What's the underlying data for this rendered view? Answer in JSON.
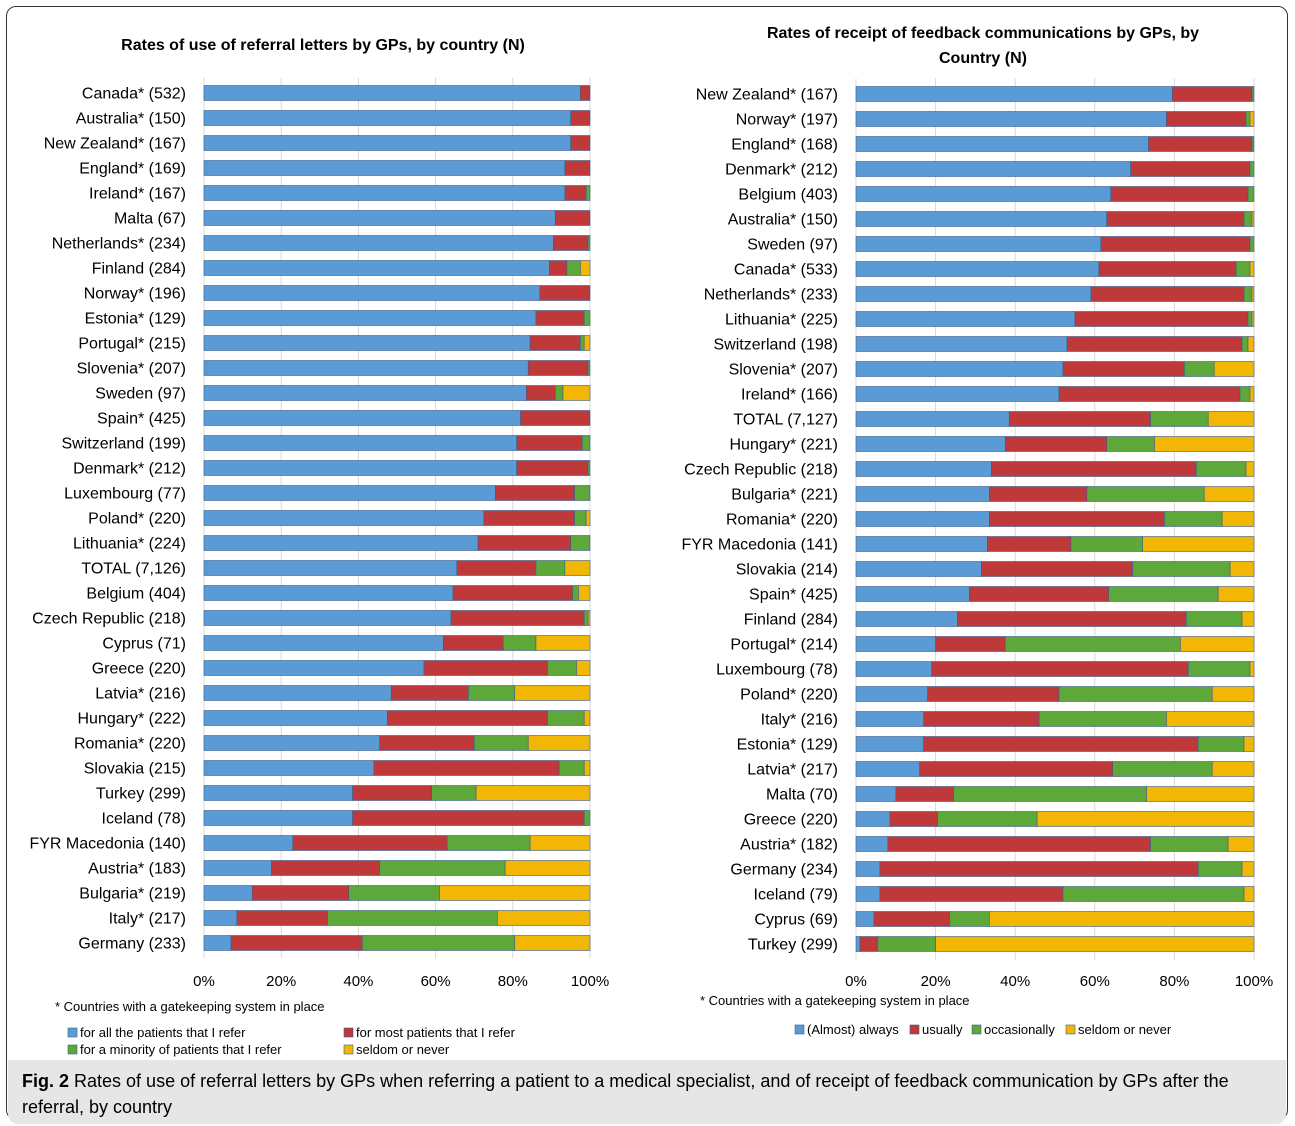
{
  "caption": {
    "label": "Fig. 2",
    "text": " Rates of use of referral letters by GPs when referring a patient to a medical specialist, and of receipt of feedback communication by GPs after the referral, by country"
  },
  "colors": {
    "s1": "#5b9bd5",
    "s2": "#c0393a",
    "s3": "#5ea83a",
    "s4": "#f2b705",
    "border": "#3b5d8a"
  },
  "chart_data": [
    {
      "type": "bar",
      "orientation": "horizontal",
      "stacked": true,
      "title": "Rates of use of referral letters by GPs, by country (N)",
      "footnote": "* Countries with a gatekeeping system in place",
      "xlim": [
        0,
        100
      ],
      "xticks": [
        "0%",
        "20%",
        "40%",
        "60%",
        "80%",
        "100%"
      ],
      "legend_position": "bottom",
      "categories": [
        "Canada* (532)",
        "Australia* (150)",
        "New Zealand* (167)",
        "England* (169)",
        "Ireland* (167)",
        "Malta (67)",
        "Netherlands* (234)",
        "Finland (284)",
        "Norway* (196)",
        "Estonia* (129)",
        "Portugal* (215)",
        "Slovenia* (207)",
        "Sweden (97)",
        "Spain* (425)",
        "Switzerland (199)",
        "Denmark* (212)",
        "Luxembourg (77)",
        "Poland* (220)",
        "Lithuania* (224)",
        "TOTAL (7,126)",
        "Belgium (404)",
        "Czech Republic (218)",
        "Cyprus (71)",
        "Greece (220)",
        "Latvia* (216)",
        "Hungary* (222)",
        "Romania* (220)",
        "Slovakia (215)",
        "Turkey (299)",
        "Iceland (78)",
        "FYR Macedonia (140)",
        "Austria* (183)",
        "Bulgaria* (219)",
        "Italy* (217)",
        "Germany (233)"
      ],
      "series": [
        {
          "name": "for all the patients that I refer",
          "values": [
            97.5,
            95,
            95,
            93.5,
            93.5,
            91,
            90.5,
            89.5,
            87,
            86,
            84.5,
            84,
            83.5,
            82,
            81,
            81,
            75.5,
            72.5,
            71,
            65.5,
            64.5,
            64,
            62,
            57,
            48.5,
            47.5,
            45.5,
            44,
            38.5,
            38.5,
            23,
            17.5,
            12.5,
            8.5,
            7
          ]
        },
        {
          "name": "for most patients that I refer",
          "values": [
            2.5,
            5,
            5,
            6.5,
            5.5,
            9,
            9,
            4.5,
            13,
            12.5,
            13,
            15.5,
            7.5,
            18,
            17,
            18.5,
            20.5,
            23.5,
            24,
            20.5,
            31,
            34.5,
            15.5,
            32,
            20,
            41.5,
            24.5,
            48,
            20.5,
            60,
            40,
            28,
            25,
            23.5,
            34
          ]
        },
        {
          "name": "for a minority of patients that I refer",
          "values": [
            0,
            0,
            0,
            0,
            1,
            0,
            0.5,
            3.5,
            0,
            1.5,
            1,
            0.5,
            2,
            0,
            2,
            0.5,
            4,
            3,
            5,
            7.5,
            1.5,
            1,
            8.5,
            7.5,
            12,
            9.5,
            14,
            6.5,
            11.5,
            1.5,
            21.5,
            32.5,
            23.5,
            44,
            39.5
          ]
        },
        {
          "name": "seldom or never",
          "values": [
            0,
            0,
            0,
            0,
            0,
            0,
            0,
            2.5,
            0,
            0,
            1.5,
            0,
            7,
            0,
            0,
            0,
            0,
            1,
            0,
            6.5,
            3,
            0.5,
            14,
            3.5,
            19.5,
            1.5,
            16,
            1.5,
            29.5,
            0,
            15.5,
            22,
            39,
            24,
            19.5
          ]
        }
      ]
    },
    {
      "type": "bar",
      "orientation": "horizontal",
      "stacked": true,
      "title": "Rates of receipt of feedback communications by GPs, by Country (N)",
      "title_lines": [
        "Rates of receipt of feedback communications by GPs, by",
        "Country (N)"
      ],
      "footnote": "* Countries with a gatekeeping system in place",
      "xlim": [
        0,
        100
      ],
      "xticks": [
        "0%",
        "20%",
        "40%",
        "60%",
        "80%",
        "100%"
      ],
      "legend_position": "bottom",
      "categories": [
        "New Zealand* (167)",
        "Norway* (197)",
        "England* (168)",
        "Denmark* (212)",
        "Belgium (403)",
        "Australia* (150)",
        "Sweden (97)",
        "Canada* (533)",
        "Netherlands* (233)",
        "Lithuania* (225)",
        "Switzerland (198)",
        "Slovenia* (207)",
        "Ireland* (166)",
        "TOTAL (7,127)",
        "Hungary* (221)",
        "Czech Republic (218)",
        "Bulgaria* (221)",
        "Romania* (220)",
        "FYR Macedonia (141)",
        "Slovakia (214)",
        "Spain* (425)",
        "Finland (284)",
        "Portugal* (214)",
        "Luxembourg (78)",
        "Poland* (220)",
        "Italy* (216)",
        "Estonia* (129)",
        "Latvia* (217)",
        "Malta (70)",
        "Greece (220)",
        "Austria* (182)",
        "Germany (234)",
        "Iceland (79)",
        "Cyprus (69)",
        "Turkey (299)"
      ],
      "series": [
        {
          "name": "(Almost) always",
          "values": [
            79.5,
            78,
            73.5,
            69,
            64,
            63,
            61.5,
            61,
            59,
            55,
            53,
            52,
            51,
            38.5,
            37.5,
            34,
            33.5,
            33.5,
            33,
            31.5,
            28.5,
            25.5,
            20,
            19,
            18,
            17,
            17,
            16,
            10,
            8.5,
            8,
            6,
            6,
            4.5,
            1
          ]
        },
        {
          "name": "usually",
          "values": [
            20,
            20,
            26,
            30,
            34.5,
            34.5,
            37.5,
            34.5,
            38.5,
            43.5,
            44,
            30.5,
            45.5,
            35.5,
            25.5,
            51.5,
            24.5,
            44,
            21,
            38,
            35,
            57.5,
            17.5,
            64.5,
            33,
            29,
            69,
            48.5,
            14.5,
            12,
            66,
            80,
            46,
            19,
            4.5
          ]
        },
        {
          "name": "occasionally",
          "values": [
            0.5,
            1,
            0.5,
            1,
            1.5,
            2,
            1,
            3.5,
            2,
            1,
            1.5,
            7.5,
            2.5,
            14.5,
            12,
            12.5,
            29.5,
            14.5,
            18,
            24.5,
            27.5,
            14,
            44,
            15.5,
            38.5,
            32,
            11.5,
            25,
            48.5,
            25,
            19.5,
            11,
            45.5,
            10,
            14.5
          ]
        },
        {
          "name": "seldom or never",
          "values": [
            0,
            1,
            0,
            0,
            0,
            0.5,
            0,
            1,
            0.5,
            0.5,
            1.5,
            10,
            1,
            11.5,
            25,
            2,
            12.5,
            8,
            28,
            6,
            9,
            3,
            18.5,
            1,
            10.5,
            22,
            2.5,
            10.5,
            27,
            54.5,
            6.5,
            3,
            2.5,
            66.5,
            80
          ]
        }
      ]
    }
  ]
}
